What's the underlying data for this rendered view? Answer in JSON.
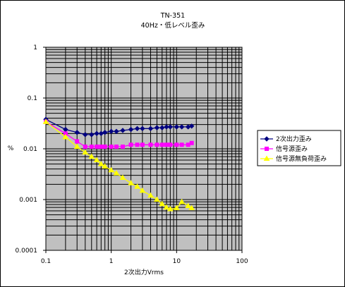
{
  "chart_data": {
    "type": "line",
    "title": "TN-351",
    "subtitle": "40Hz・低レベル歪み",
    "xlabel": "2次出力Vrms",
    "ylabel": "%",
    "x_scale": "log",
    "y_scale": "log",
    "xlim": [
      0.1,
      100
    ],
    "ylim": [
      0.0001,
      1
    ],
    "x_ticks": [
      "0.1",
      "1",
      "10",
      "100"
    ],
    "y_ticks": [
      "1",
      "0.1",
      "0.01",
      "0.001",
      "0.0001"
    ],
    "grid": true,
    "plot_background": "#c0c0c0",
    "legend_position": "right",
    "series": [
      {
        "name": "2次出力歪み",
        "color": "#000080",
        "marker": "diamond",
        "points": [
          [
            0.1,
            0.038
          ],
          [
            0.2,
            0.024
          ],
          [
            0.3,
            0.021
          ],
          [
            0.4,
            0.019
          ],
          [
            0.5,
            0.019
          ],
          [
            0.6,
            0.02
          ],
          [
            0.7,
            0.02
          ],
          [
            0.8,
            0.021
          ],
          [
            1.0,
            0.022
          ],
          [
            1.2,
            0.022
          ],
          [
            1.5,
            0.023
          ],
          [
            2.0,
            0.024
          ],
          [
            2.5,
            0.025
          ],
          [
            3.0,
            0.025
          ],
          [
            4.0,
            0.025
          ],
          [
            5.0,
            0.026
          ],
          [
            6.0,
            0.026
          ],
          [
            7.0,
            0.027
          ],
          [
            8.0,
            0.027
          ],
          [
            10.0,
            0.027
          ],
          [
            12.0,
            0.027
          ],
          [
            15.0,
            0.027
          ],
          [
            17.0,
            0.028
          ]
        ]
      },
      {
        "name": "信号源歪み",
        "color": "#ff00ff",
        "marker": "square",
        "points": [
          [
            0.1,
            0.034
          ],
          [
            0.2,
            0.02
          ],
          [
            0.3,
            0.014
          ],
          [
            0.4,
            0.011
          ],
          [
            0.5,
            0.011
          ],
          [
            0.6,
            0.011
          ],
          [
            0.7,
            0.011
          ],
          [
            0.8,
            0.011
          ],
          [
            1.0,
            0.011
          ],
          [
            1.2,
            0.011
          ],
          [
            1.5,
            0.011
          ],
          [
            2.0,
            0.012
          ],
          [
            2.5,
            0.012
          ],
          [
            3.0,
            0.012
          ],
          [
            4.0,
            0.012
          ],
          [
            5.0,
            0.012
          ],
          [
            6.0,
            0.012
          ],
          [
            7.0,
            0.012
          ],
          [
            8.0,
            0.012
          ],
          [
            10.0,
            0.012
          ],
          [
            12.0,
            0.012
          ],
          [
            15.0,
            0.012
          ],
          [
            17.0,
            0.013
          ]
        ]
      },
      {
        "name": "信号源無負荷歪み",
        "color": "#ffff00",
        "marker": "triangle",
        "points": [
          [
            0.1,
            0.034
          ],
          [
            0.2,
            0.017
          ],
          [
            0.3,
            0.011
          ],
          [
            0.4,
            0.0085
          ],
          [
            0.5,
            0.007
          ],
          [
            0.6,
            0.006
          ],
          [
            0.7,
            0.005
          ],
          [
            0.8,
            0.0045
          ],
          [
            1.0,
            0.0038
          ],
          [
            1.2,
            0.0033
          ],
          [
            1.5,
            0.0027
          ],
          [
            2.0,
            0.0021
          ],
          [
            2.5,
            0.0018
          ],
          [
            3.0,
            0.0015
          ],
          [
            4.0,
            0.0012
          ],
          [
            5.0,
            0.001
          ],
          [
            6.0,
            0.00082
          ],
          [
            7.0,
            0.0007
          ],
          [
            8.0,
            0.00065
          ],
          [
            10.0,
            0.00068
          ],
          [
            12.0,
            0.0009
          ],
          [
            15.0,
            0.00075
          ],
          [
            17.0,
            0.00068
          ]
        ]
      }
    ]
  }
}
